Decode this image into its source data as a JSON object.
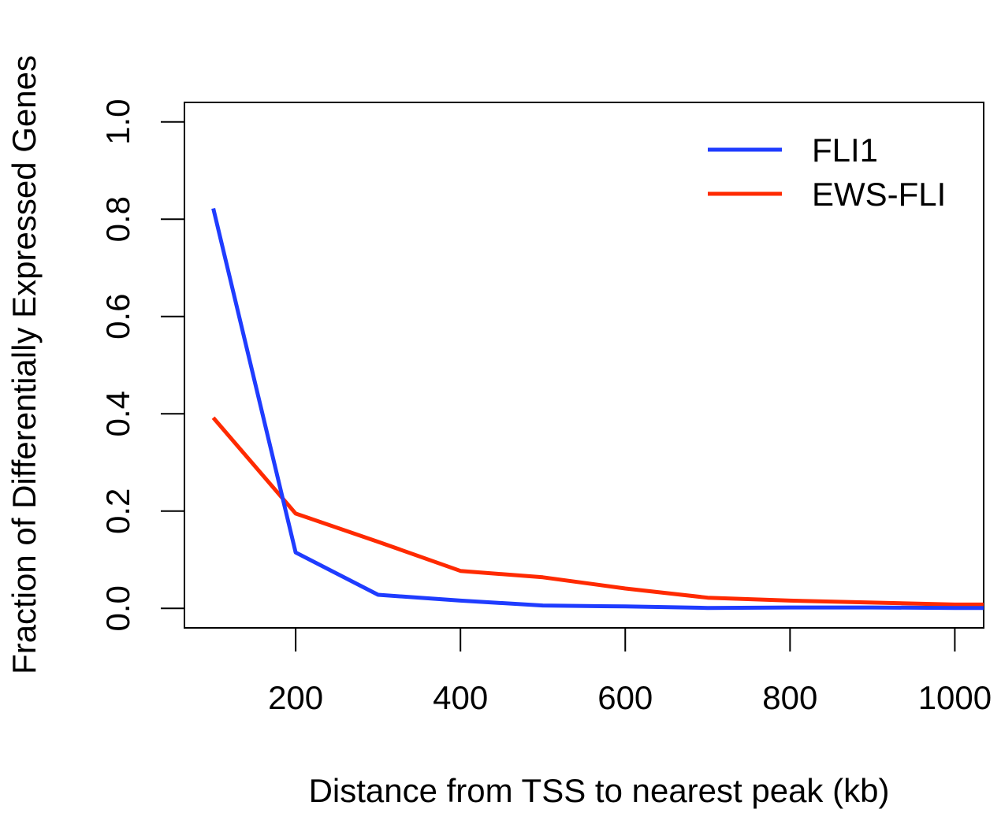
{
  "chart_data": {
    "type": "line",
    "title": "",
    "xlabel": "Distance from TSS to nearest peak (kb)",
    "ylabel": "Fraction of Differentially Expressed Genes",
    "xlim": [
      65,
      1035
    ],
    "ylim": [
      -0.04,
      1.04
    ],
    "xticks": [
      200,
      400,
      600,
      800,
      1000
    ],
    "yticks": [
      0.0,
      0.2,
      0.4,
      0.6,
      0.8,
      1.0
    ],
    "xtick_labels": [
      "200",
      "400",
      "600",
      "800",
      "1000"
    ],
    "ytick_labels": [
      "0.0",
      "0.2",
      "0.4",
      "0.6",
      "0.8",
      "1.0"
    ],
    "grid": false,
    "legend_position": "top-right",
    "x": [
      100,
      200,
      300,
      400,
      500,
      600,
      700,
      800,
      900,
      1000,
      1035
    ],
    "series": [
      {
        "name": "FLI1",
        "color": "#1f3cff",
        "values": [
          0.822,
          0.115,
          0.028,
          0.016,
          0.006,
          0.004,
          0.001,
          0.002,
          0.002,
          0.001,
          0.001
        ]
      },
      {
        "name": "EWS-FLI",
        "color": "#ff2a00",
        "values": [
          0.392,
          0.195,
          0.137,
          0.077,
          0.064,
          0.041,
          0.022,
          0.016,
          0.012,
          0.008,
          0.008
        ]
      }
    ]
  }
}
